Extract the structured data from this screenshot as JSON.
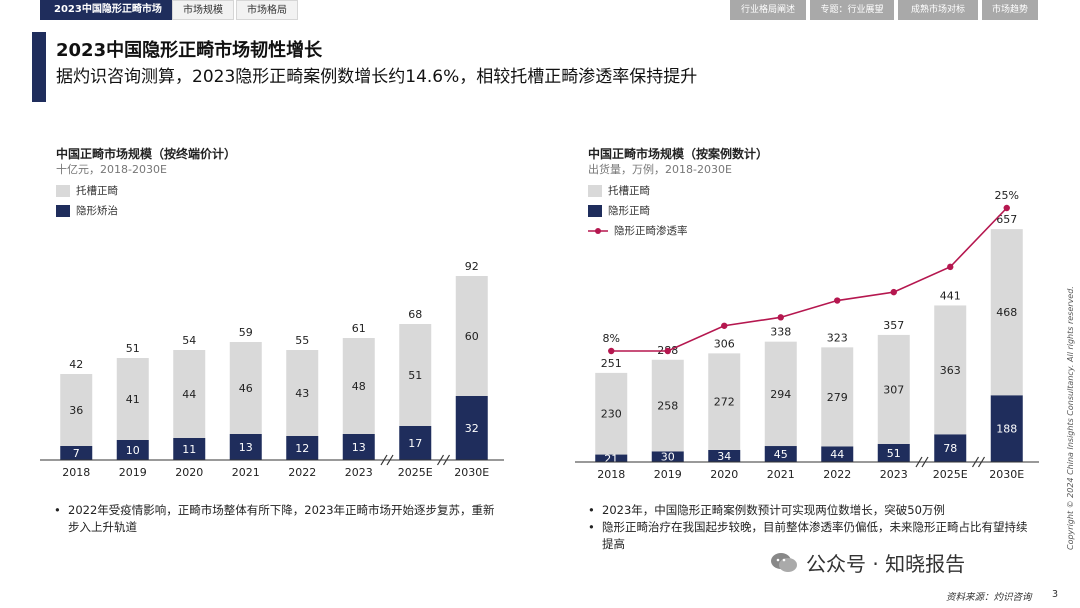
{
  "nav": {
    "active_tab": "2023中国隐形正畸市场",
    "tabs": [
      "市场规模",
      "市场格局"
    ],
    "right_tabs": [
      "行业格局阐述",
      "专题：行业展望",
      "成熟市场对标",
      "市场趋势"
    ]
  },
  "header": {
    "title": "2023中国隐形正畸市场韧性增长",
    "subtitle": "据灼识咨询测算，2023隐形正畸案例数增长约14.6%，相较托槽正畸渗透率保持提升"
  },
  "chart_data": [
    {
      "type": "bar",
      "stacked": true,
      "title": "中国正畸市场规模（按终端价计）",
      "subtitle": "十亿元，2018-2030E",
      "categories": [
        "2018",
        "2019",
        "2020",
        "2021",
        "2022",
        "2023",
        "2025E",
        "2030E"
      ],
      "series": [
        {
          "name": "隐形矫治",
          "color": "#1f2d5c",
          "values": [
            7,
            10,
            11,
            13,
            12,
            13,
            17,
            32
          ]
        },
        {
          "name": "托槽正畸",
          "color": "#d9d9d9",
          "values": [
            36,
            41,
            44,
            46,
            43,
            48,
            51,
            60
          ]
        }
      ],
      "totals": [
        42,
        51,
        54,
        59,
        55,
        61,
        68,
        92
      ],
      "axis_breaks_after": [
        "2023",
        "2025E"
      ]
    },
    {
      "type": "bar",
      "stacked": true,
      "title": "中国正畸市场规模（按案例数计）",
      "subtitle": "出货量，万例，2018-2030E",
      "categories": [
        "2018",
        "2019",
        "2020",
        "2021",
        "2022",
        "2023",
        "2025E",
        "2030E"
      ],
      "series": [
        {
          "name": "隐形正畸",
          "color": "#1f2d5c",
          "values": [
            21,
            30,
            34,
            45,
            44,
            51,
            78,
            188
          ]
        },
        {
          "name": "托槽正畸",
          "color": "#d9d9d9",
          "values": [
            230,
            258,
            272,
            294,
            279,
            307,
            363,
            468
          ]
        }
      ],
      "totals": [
        251,
        288,
        306,
        338,
        323,
        357,
        441,
        657
      ],
      "line": {
        "name": "隐形正畸渗透率",
        "color": "#b5174f",
        "values": [
          8,
          8,
          11,
          12,
          14,
          15,
          18,
          25
        ],
        "labels": [
          "8%",
          "",
          "",
          "",
          "",
          "",
          "",
          "25%"
        ]
      },
      "axis_breaks_after": [
        "2023",
        "2025E"
      ]
    }
  ],
  "bullets_left": [
    "2022年受疫情影响，正畸市场整体有所下降，2023年正畸市场开始逐步复苏，重新步入上升轨道"
  ],
  "bullets_right": [
    "2023年，中国隐形正畸案例数预计可实现两位数增长，突破50万例",
    "隐形正畸治疗在我国起步较晚，目前整体渗透率仍偏低，未来隐形正畸占比有望持续提高"
  ],
  "footer": {
    "source": "资料来源：灼识咨询",
    "page": "3",
    "copyright": "Copyright © 2024 China Insights Consultancy. All rights reserved.",
    "wechat": "公众号 · 知晓报告"
  }
}
